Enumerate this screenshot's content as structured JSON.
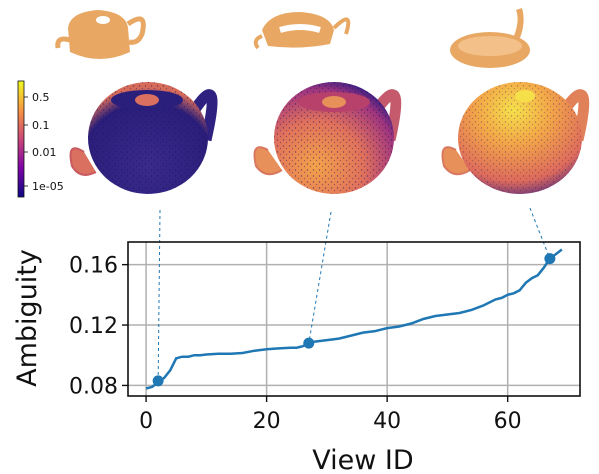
{
  "chart_data": {
    "type": "line",
    "title": "",
    "xlabel": "View ID",
    "ylabel": "Ambiguity",
    "xlim": [
      -3,
      72
    ],
    "ylim": [
      0.073,
      0.175
    ],
    "xticks": [
      0,
      20,
      40,
      60
    ],
    "xtick_labels": [
      "0",
      "20",
      "40",
      "60"
    ],
    "yticks": [
      0.08,
      0.12,
      0.16
    ],
    "ytick_labels": [
      "0.08",
      "0.12",
      "0.16"
    ],
    "grid": true,
    "colors": {
      "line": "#1f77b4",
      "marker": "#1f77b4"
    },
    "series": [
      {
        "x": [
          0,
          1,
          2,
          3,
          4,
          5,
          6,
          7,
          8,
          9,
          10,
          12,
          14,
          16,
          18,
          20,
          22,
          24,
          25,
          26,
          27,
          28,
          30,
          32,
          34,
          36,
          38,
          40,
          42,
          44,
          46,
          48,
          50,
          52,
          54,
          56,
          58,
          59,
          60,
          61,
          62,
          63,
          64,
          65,
          66,
          67,
          68,
          69
        ],
        "y": [
          0.078,
          0.079,
          0.082,
          0.085,
          0.09,
          0.098,
          0.099,
          0.099,
          0.1,
          0.1,
          0.1005,
          0.101,
          0.101,
          0.1015,
          0.103,
          0.104,
          0.1045,
          0.105,
          0.105,
          0.106,
          0.108,
          0.109,
          0.11,
          0.111,
          0.113,
          0.115,
          0.116,
          0.118,
          0.119,
          0.121,
          0.124,
          0.126,
          0.127,
          0.128,
          0.13,
          0.133,
          0.137,
          0.138,
          0.14,
          0.141,
          0.143,
          0.148,
          0.151,
          0.153,
          0.158,
          0.164,
          0.167,
          0.17
        ]
      }
    ],
    "highlighted_points": [
      {
        "x": 2,
        "y": 0.083
      },
      {
        "x": 27,
        "y": 0.108
      },
      {
        "x": 67,
        "y": 0.164
      }
    ],
    "colorbar": {
      "colormap": "plasma",
      "tick_labels": [
        "0.5",
        "0.1",
        "0.01",
        "1e-05"
      ]
    }
  }
}
